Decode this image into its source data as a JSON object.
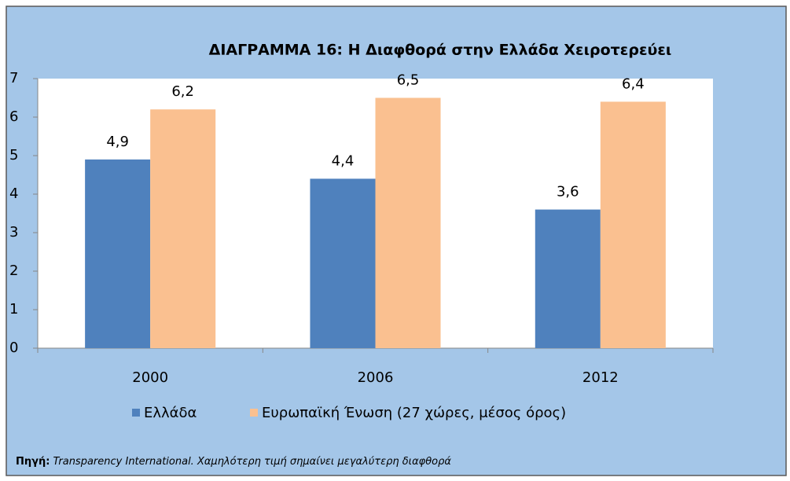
{
  "chart_data": {
    "type": "bar",
    "title": "ΔΙΑΓΡΑΜΜΑ 16: Η Διαφθορά στην Ελλάδα Χειροτερεύει",
    "categories": [
      "2000",
      "2006",
      "2012"
    ],
    "series": [
      {
        "name": "Ελλάδα",
        "color": "#4f81bd",
        "values": [
          4.9,
          4.4,
          3.6
        ],
        "value_labels": [
          "4,9",
          "4,4",
          "3,6"
        ]
      },
      {
        "name": "Ευρωπαϊκή Ένωση (27 χώρες, μέσος όρος)",
        "color": "#fac090",
        "values": [
          6.2,
          6.5,
          6.4
        ],
        "value_labels": [
          "6,2",
          "6,5",
          "6,4"
        ]
      }
    ],
    "ylim": [
      0,
      7
    ],
    "yticks": [
      0,
      1,
      2,
      3,
      4,
      5,
      6,
      7
    ],
    "grid": false,
    "legend": "bottom",
    "source_label": "Πηγή:",
    "source_text": "Transparency International. Χαμηλότερη τιμή σημαίνει μεγαλύτερη διαφθορά"
  }
}
